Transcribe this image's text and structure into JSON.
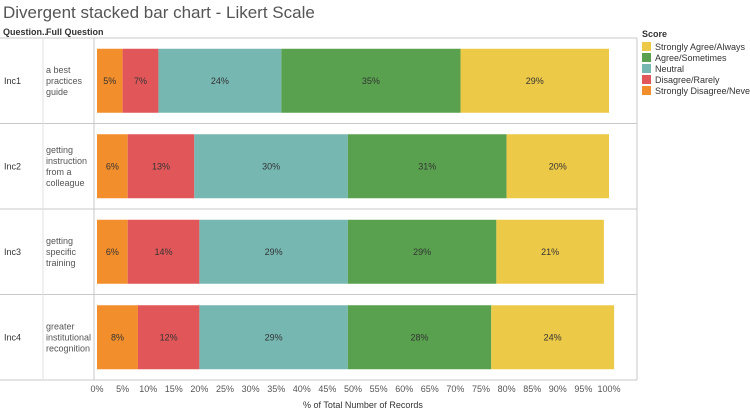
{
  "chart_data": {
    "type": "bar",
    "orientation": "horizontal",
    "stacked": true,
    "title": "Divergent stacked bar chart - Likert Scale",
    "row_headers": [
      "Question..",
      "Full Question"
    ],
    "xlabel": "% of Total Number of Records",
    "xlim": [
      0,
      100
    ],
    "xticks": [
      "0%",
      "5%",
      "10%",
      "15%",
      "20%",
      "25%",
      "30%",
      "35%",
      "40%",
      "45%",
      "50%",
      "55%",
      "60%",
      "65%",
      "70%",
      "75%",
      "80%",
      "85%",
      "90%",
      "95%",
      "100%"
    ],
    "categories": [
      "Inc1",
      "Inc2",
      "Inc3",
      "Inc4"
    ],
    "full_questions": [
      [
        "a best",
        "practices",
        "guide"
      ],
      [
        "getting",
        "instruction",
        "from a",
        "colleague"
      ],
      [
        "getting",
        "specific",
        "training"
      ],
      [
        "greater",
        "institutional",
        "recognition"
      ]
    ],
    "legend_title": "Score",
    "legend_labels": [
      "Strongly Agree/Always",
      "Agree/Sometimes",
      "Neutral",
      "Disagree/Rarely",
      "Strongly Disagree/Never"
    ],
    "series": [
      {
        "name": "Strongly Disagree/Never",
        "color": "#f28e2b",
        "values": [
          5,
          6,
          6,
          8
        ],
        "labels": [
          "5%",
          "6%",
          "6%",
          "8%"
        ]
      },
      {
        "name": "Disagree/Rarely",
        "color": "#e15759",
        "values": [
          7,
          13,
          14,
          12
        ],
        "labels": [
          "7%",
          "13%",
          "14%",
          "12%"
        ]
      },
      {
        "name": "Neutral",
        "color": "#76b7b2",
        "values": [
          24,
          30,
          29,
          29
        ],
        "labels": [
          "24%",
          "30%",
          "29%",
          "29%"
        ]
      },
      {
        "name": "Agree/Sometimes",
        "color": "#59a14f",
        "values": [
          35,
          31,
          29,
          28
        ],
        "labels": [
          "35%",
          "31%",
          "29%",
          "28%"
        ]
      },
      {
        "name": "Strongly Agree/Always",
        "color": "#edc948",
        "values": [
          29,
          20,
          21,
          24
        ],
        "labels": [
          "29%",
          "20%",
          "21%",
          "24%"
        ]
      }
    ]
  }
}
